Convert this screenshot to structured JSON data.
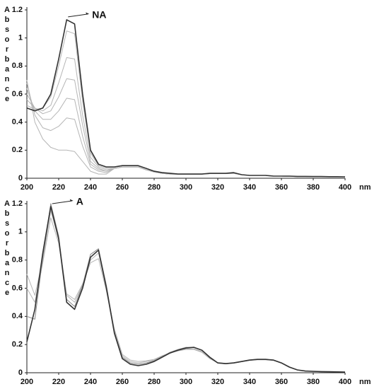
{
  "chart_data": [
    {
      "type": "line",
      "ylabel": "Absorbance",
      "xlabel": "nm",
      "annotations": [
        {
          "text": "NA"
        }
      ],
      "xlim": [
        200,
        400
      ],
      "xticks": [
        200,
        220,
        240,
        260,
        280,
        300,
        320,
        340,
        360,
        380,
        400
      ],
      "ylim": [
        0,
        1.2
      ],
      "yticks": [
        0,
        0.2,
        0.4,
        0.6,
        0.8,
        1,
        1.2
      ],
      "x": [
        200,
        205,
        210,
        215,
        220,
        225,
        230,
        235,
        240,
        245,
        250,
        255,
        260,
        265,
        270,
        275,
        280,
        285,
        290,
        295,
        300,
        305,
        310,
        315,
        320,
        325,
        330,
        335,
        340,
        345,
        350,
        355,
        360,
        365,
        370,
        375,
        380,
        385,
        390,
        395,
        400
      ],
      "series": [
        {
          "color": "#b5b5b5",
          "values": [
            0.7,
            0.4,
            0.28,
            0.22,
            0.2,
            0.2,
            0.19,
            0.12,
            0.05,
            0.03,
            0.03,
            0.07,
            0.08,
            0.08,
            0.08,
            0.06,
            0.045,
            0.035,
            0.03,
            0.03,
            0.03,
            0.03,
            0.03,
            0.033,
            0.033,
            0.033,
            0.035,
            0.025,
            0.02,
            0.02,
            0.02,
            0.015,
            0.015,
            0.013,
            0.012,
            0.012,
            0.011,
            0.011,
            0.01,
            0.01,
            0.01
          ]
        },
        {
          "color": "#b5b5b5",
          "values": [
            0.68,
            0.45,
            0.36,
            0.34,
            0.37,
            0.43,
            0.42,
            0.23,
            0.08,
            0.05,
            0.04,
            0.07,
            0.08,
            0.08,
            0.08,
            0.06,
            0.045,
            0.035,
            0.03,
            0.03,
            0.03,
            0.03,
            0.03,
            0.033,
            0.033,
            0.033,
            0.035,
            0.025,
            0.02,
            0.02,
            0.02,
            0.015,
            0.015,
            0.013,
            0.012,
            0.012,
            0.011,
            0.011,
            0.01,
            0.01,
            0.01
          ]
        },
        {
          "color": "#b5b5b5",
          "values": [
            0.64,
            0.48,
            0.42,
            0.42,
            0.48,
            0.57,
            0.56,
            0.3,
            0.1,
            0.06,
            0.05,
            0.07,
            0.08,
            0.08,
            0.08,
            0.06,
            0.045,
            0.035,
            0.03,
            0.03,
            0.03,
            0.03,
            0.03,
            0.033,
            0.033,
            0.033,
            0.035,
            0.025,
            0.02,
            0.02,
            0.02,
            0.015,
            0.015,
            0.013,
            0.012,
            0.012,
            0.011,
            0.011,
            0.01,
            0.01,
            0.01
          ]
        },
        {
          "color": "#b5b5b5",
          "values": [
            0.6,
            0.5,
            0.46,
            0.48,
            0.58,
            0.71,
            0.7,
            0.38,
            0.12,
            0.07,
            0.05,
            0.07,
            0.08,
            0.08,
            0.08,
            0.06,
            0.045,
            0.035,
            0.03,
            0.03,
            0.03,
            0.03,
            0.03,
            0.033,
            0.033,
            0.033,
            0.035,
            0.025,
            0.02,
            0.02,
            0.02,
            0.015,
            0.015,
            0.013,
            0.012,
            0.012,
            0.011,
            0.011,
            0.01,
            0.01,
            0.01
          ]
        },
        {
          "color": "#b5b5b5",
          "values": [
            0.56,
            0.5,
            0.48,
            0.52,
            0.68,
            0.86,
            0.85,
            0.45,
            0.15,
            0.08,
            0.06,
            0.07,
            0.08,
            0.08,
            0.08,
            0.06,
            0.045,
            0.035,
            0.03,
            0.03,
            0.03,
            0.03,
            0.03,
            0.033,
            0.033,
            0.033,
            0.035,
            0.025,
            0.02,
            0.02,
            0.02,
            0.015,
            0.015,
            0.013,
            0.012,
            0.012,
            0.011,
            0.011,
            0.01,
            0.01,
            0.01
          ]
        },
        {
          "color": "#b5b5b5",
          "values": [
            0.52,
            0.49,
            0.5,
            0.58,
            0.8,
            1.05,
            1.03,
            0.55,
            0.18,
            0.09,
            0.07,
            0.07,
            0.08,
            0.08,
            0.08,
            0.06,
            0.045,
            0.035,
            0.03,
            0.03,
            0.03,
            0.03,
            0.03,
            0.033,
            0.033,
            0.033,
            0.035,
            0.025,
            0.02,
            0.02,
            0.02,
            0.015,
            0.015,
            0.013,
            0.012,
            0.012,
            0.011,
            0.011,
            0.01,
            0.01,
            0.01
          ]
        },
        {
          "color": "#333333",
          "values": [
            0.5,
            0.48,
            0.5,
            0.6,
            0.85,
            1.13,
            1.1,
            0.6,
            0.2,
            0.1,
            0.08,
            0.08,
            0.09,
            0.09,
            0.09,
            0.07,
            0.05,
            0.04,
            0.035,
            0.03,
            0.03,
            0.03,
            0.03,
            0.035,
            0.035,
            0.035,
            0.04,
            0.025,
            0.02,
            0.02,
            0.02,
            0.015,
            0.015,
            0.015,
            0.013,
            0.013,
            0.012,
            0.012,
            0.011,
            0.011,
            0.01
          ]
        }
      ]
    },
    {
      "type": "line",
      "ylabel": "Absorbance",
      "xlabel": "nm",
      "annotations": [
        {
          "text": "A"
        }
      ],
      "xlim": [
        200,
        400
      ],
      "xticks": [
        200,
        220,
        240,
        260,
        280,
        300,
        320,
        340,
        360,
        380,
        400
      ],
      "ylim": [
        0,
        1.2
      ],
      "yticks": [
        0,
        0.2,
        0.4,
        0.6,
        0.8,
        1,
        1.2
      ],
      "x": [
        200,
        205,
        210,
        215,
        220,
        225,
        230,
        235,
        240,
        245,
        250,
        255,
        260,
        265,
        270,
        275,
        280,
        285,
        290,
        295,
        300,
        305,
        310,
        315,
        320,
        325,
        330,
        335,
        340,
        345,
        350,
        355,
        360,
        365,
        370,
        375,
        380,
        385,
        390,
        395,
        400
      ],
      "series": [
        {
          "color": "#b5b5b5",
          "values": [
            0.7,
            0.55,
            0.8,
            1.15,
            0.95,
            0.55,
            0.5,
            0.62,
            0.8,
            0.85,
            0.6,
            0.3,
            0.12,
            0.08,
            0.07,
            0.08,
            0.09,
            0.12,
            0.14,
            0.16,
            0.17,
            0.17,
            0.15,
            0.1,
            0.07,
            0.065,
            0.07,
            0.08,
            0.09,
            0.095,
            0.095,
            0.09,
            0.07,
            0.04,
            0.02,
            0.012,
            0.01,
            0.008,
            0.007,
            0.006,
            0.005
          ]
        },
        {
          "color": "#b5b5b5",
          "values": [
            0.6,
            0.5,
            0.78,
            1.1,
            0.92,
            0.56,
            0.52,
            0.63,
            0.78,
            0.81,
            0.58,
            0.31,
            0.13,
            0.09,
            0.08,
            0.085,
            0.095,
            0.12,
            0.14,
            0.155,
            0.165,
            0.165,
            0.145,
            0.1,
            0.072,
            0.066,
            0.07,
            0.08,
            0.088,
            0.092,
            0.092,
            0.088,
            0.07,
            0.04,
            0.02,
            0.012,
            0.01,
            0.008,
            0.007,
            0.006,
            0.005
          ]
        },
        {
          "color": "#888888",
          "values": [
            0.4,
            0.38,
            0.82,
            1.2,
            0.97,
            0.52,
            0.47,
            0.62,
            0.84,
            0.88,
            0.62,
            0.29,
            0.11,
            0.07,
            0.06,
            0.07,
            0.085,
            0.115,
            0.145,
            0.165,
            0.18,
            0.18,
            0.16,
            0.105,
            0.068,
            0.063,
            0.068,
            0.078,
            0.088,
            0.093,
            0.093,
            0.088,
            0.068,
            0.038,
            0.019,
            0.011,
            0.009,
            0.007,
            0.006,
            0.005,
            0.005
          ]
        },
        {
          "color": "#333333",
          "values": [
            0.22,
            0.45,
            0.85,
            1.18,
            0.95,
            0.5,
            0.45,
            0.6,
            0.82,
            0.87,
            0.6,
            0.28,
            0.1,
            0.06,
            0.05,
            0.06,
            0.08,
            0.11,
            0.14,
            0.16,
            0.175,
            0.18,
            0.16,
            0.11,
            0.07,
            0.065,
            0.07,
            0.08,
            0.09,
            0.095,
            0.095,
            0.09,
            0.07,
            0.04,
            0.02,
            0.012,
            0.01,
            0.008,
            0.007,
            0.006,
            0.005
          ]
        }
      ]
    }
  ]
}
